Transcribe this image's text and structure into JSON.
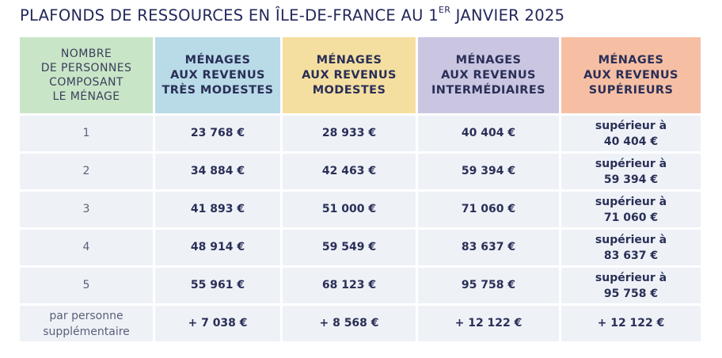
{
  "title": {
    "main": "PLAFONDS DE RESSOURCES EN ÎLE-DE-FRANCE AU 1",
    "superscript": "ER",
    "rest": " JANVIER 2025"
  },
  "headers": {
    "persons": [
      "NOMBRE",
      "DE PERSONNES",
      "COMPOSANT",
      "LE MÉNAGE"
    ],
    "tres_modestes": [
      "MÉNAGES",
      "AUX REVENUS",
      "TRÈS MODESTES"
    ],
    "modestes": [
      "MÉNAGES",
      "AUX REVENUS",
      "MODESTES"
    ],
    "intermediaires": [
      "MÉNAGES",
      "AUX REVENUS",
      "INTERMÉDIAIRES"
    ],
    "superieurs": [
      "MÉNAGES",
      "AUX REVENUS",
      "SUPÉRIEURS"
    ]
  },
  "colors": {
    "persons_header": "#c9e5c7",
    "tres_modestes_header": "#b9dbe8",
    "modestes_header": "#f5dfa0",
    "intermediaires_header": "#cac6e2",
    "superieurs_header": "#f6bfa4",
    "row_background": "#eef2f7",
    "text": "#2a2f57"
  },
  "rows": [
    {
      "persons": "1",
      "tres_modestes": "23 768 €",
      "modestes": "28 933 €",
      "intermediaires": "40 404 €",
      "superieurs_prefix": "supérieur à",
      "superieurs_value": "40 404 €"
    },
    {
      "persons": "2",
      "tres_modestes": "34 884 €",
      "modestes": "42 463 €",
      "intermediaires": "59 394 €",
      "superieurs_prefix": "supérieur à",
      "superieurs_value": "59 394 €"
    },
    {
      "persons": "3",
      "tres_modestes": "41 893 €",
      "modestes": "51 000 €",
      "intermediaires": "71 060 €",
      "superieurs_prefix": "supérieur à",
      "superieurs_value": "71 060 €"
    },
    {
      "persons": "4",
      "tres_modestes": "48 914 €",
      "modestes": "59 549 €",
      "intermediaires": "83 637 €",
      "superieurs_prefix": "supérieur à",
      "superieurs_value": "83 637 €"
    },
    {
      "persons": "5",
      "tres_modestes": "55 961 €",
      "modestes": "68 123 €",
      "intermediaires": "95 758 €",
      "superieurs_prefix": "supérieur à",
      "superieurs_value": "95 758 €"
    }
  ],
  "extra_row": {
    "persons": [
      "par personne",
      "supplémentaire"
    ],
    "tres_modestes": "+ 7 038 €",
    "modestes": "+ 8 568 €",
    "intermediaires": "+ 12 122 €",
    "superieurs": "+ 12 122 €"
  }
}
